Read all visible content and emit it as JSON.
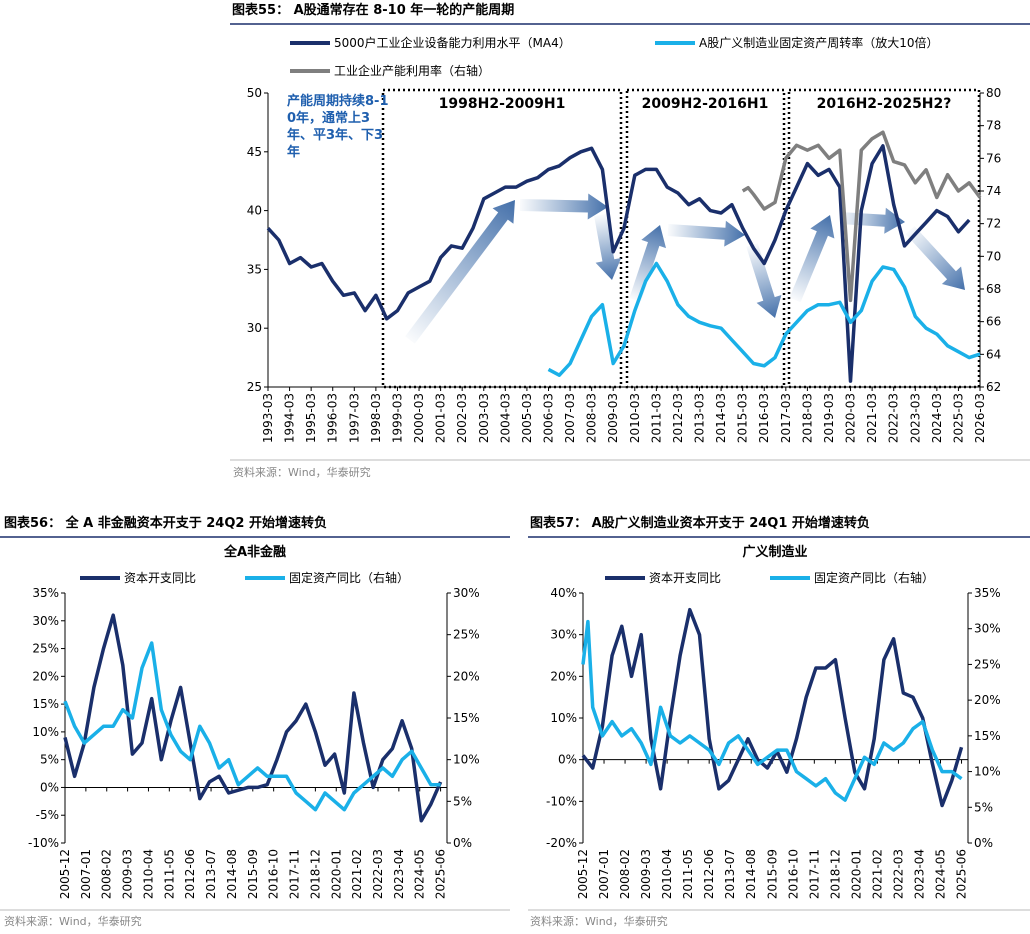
{
  "chart_data": [
    {
      "type": "line",
      "title": "图表55： A股通常存在 8-10 年一轮的产能周期",
      "source": "资料来源：Wind，华泰研究",
      "annotations": [
        "产能周期持续8-10年，通常上3年、平3年、下3年",
        "1998H2-2009H1",
        "2009H2-2016H1",
        "2016H2-2025H2?"
      ],
      "xlim": [
        "1993-03",
        "2026-03"
      ],
      "xticks": [
        "1993-03",
        "1994-03",
        "1995-03",
        "1996-03",
        "1997-03",
        "1998-03",
        "1999-03",
        "2000-03",
        "2001-03",
        "2002-03",
        "2003-03",
        "2004-03",
        "2005-03",
        "2006-03",
        "2007-03",
        "2008-03",
        "2009-03",
        "2010-03",
        "2011-03",
        "2012-03",
        "2013-03",
        "2014-03",
        "2015-03",
        "2016-03",
        "2017-03",
        "2018-03",
        "2019-03",
        "2020-03",
        "2021-03",
        "2022-03",
        "2023-03",
        "2024-03",
        "2025-03",
        "2026-03"
      ],
      "ylim": [
        25,
        50
      ],
      "yticks": [
        25,
        30,
        35,
        40,
        45,
        50
      ],
      "y2lim": [
        62,
        80
      ],
      "y2ticks": [
        62,
        64,
        66,
        68,
        70,
        72,
        74,
        76,
        78,
        80
      ],
      "series": [
        {
          "name": "5000户工业企业设备能力利用水平（MA4）",
          "color": "#1a2f6b",
          "x": [
            "1993-03",
            "1993-09",
            "1994-03",
            "1994-09",
            "1995-03",
            "1995-09",
            "1996-03",
            "1996-09",
            "1997-03",
            "1997-09",
            "1998-03",
            "1998-09",
            "1999-03",
            "1999-09",
            "2000-03",
            "2000-09",
            "2001-03",
            "2001-09",
            "2002-03",
            "2002-09",
            "2003-03",
            "2003-09",
            "2004-03",
            "2004-09",
            "2005-03",
            "2005-09",
            "2006-03",
            "2006-09",
            "2007-03",
            "2007-09",
            "2008-03",
            "2008-09",
            "2009-03",
            "2009-09",
            "2010-03",
            "2010-09",
            "2011-03",
            "2011-09",
            "2012-03",
            "2012-09",
            "2013-03",
            "2013-09",
            "2014-03",
            "2014-09",
            "2015-03",
            "2015-09",
            "2016-03",
            "2016-09",
            "2017-03",
            "2017-09",
            "2018-03",
            "2018-09",
            "2019-03",
            "2019-09",
            "2020-03",
            "2020-09",
            "2021-03",
            "2021-09",
            "2022-03",
            "2022-09",
            "2023-03",
            "2023-09",
            "2024-03",
            "2024-09",
            "2025-03",
            "2025-09"
          ],
          "values": [
            38.5,
            37.5,
            35.5,
            36,
            35.2,
            35.5,
            34,
            32.8,
            33,
            31.5,
            32.8,
            30.8,
            31.5,
            33,
            33.5,
            34,
            36,
            37,
            36.8,
            38.5,
            41,
            41.5,
            42,
            42,
            42.5,
            42.8,
            43.5,
            43.8,
            44.5,
            45,
            45.3,
            43.5,
            36.5,
            38.5,
            43,
            43.5,
            43.5,
            42,
            41.5,
            40.5,
            41,
            40,
            39.8,
            40.5,
            38.5,
            36.8,
            35.5,
            37.5,
            40,
            42,
            44,
            43,
            43.5,
            42,
            25.5,
            40,
            44,
            45.5,
            40.5,
            37,
            38,
            39,
            40,
            39.5,
            38.2,
            39.2
          ]
        },
        {
          "name": "A股广义制造业固定资产周转率（放大10倍）",
          "color": "#1ab0e8",
          "x": [
            "2006-03",
            "2006-09",
            "2007-03",
            "2007-09",
            "2008-03",
            "2008-09",
            "2009-03",
            "2009-09",
            "2010-03",
            "2010-09",
            "2011-03",
            "2011-09",
            "2012-03",
            "2012-09",
            "2013-03",
            "2013-09",
            "2014-03",
            "2014-09",
            "2015-03",
            "2015-09",
            "2016-03",
            "2016-09",
            "2017-03",
            "2017-09",
            "2018-03",
            "2018-09",
            "2019-03",
            "2019-09",
            "2020-03",
            "2020-09",
            "2021-03",
            "2021-09",
            "2022-03",
            "2022-09",
            "2023-03",
            "2023-09",
            "2024-03",
            "2024-09",
            "2025-03",
            "2025-09",
            "2026-03"
          ],
          "values": [
            26.5,
            26,
            27,
            29,
            31,
            32,
            27,
            28.5,
            31.5,
            34,
            35.5,
            34,
            32,
            31,
            30.5,
            30.2,
            30,
            29,
            28,
            27,
            26.8,
            27.5,
            29.5,
            30.5,
            31.5,
            32,
            32,
            32.2,
            30.5,
            31.5,
            34,
            35.2,
            35,
            33.5,
            31,
            30,
            29.5,
            28.5,
            28,
            27.5,
            27.8
          ]
        },
        {
          "name": "工业企业产能利用率（右轴）",
          "color": "#7f7f7f",
          "axis": "y2",
          "x": [
            "2015-03",
            "2015-06",
            "2015-09",
            "2016-03",
            "2016-09",
            "2017-03",
            "2017-09",
            "2018-03",
            "2018-09",
            "2019-03",
            "2019-09",
            "2020-03",
            "2020-09",
            "2021-03",
            "2021-09",
            "2022-03",
            "2022-09",
            "2023-03",
            "2023-09",
            "2024-03",
            "2024-09",
            "2025-03",
            "2025-09",
            "2026-03"
          ],
          "values": [
            74,
            74.2,
            73.8,
            72.9,
            73.3,
            76,
            76.8,
            76.5,
            76.8,
            76,
            76.5,
            67.3,
            76.5,
            77.2,
            77.6,
            75.8,
            75.6,
            74.5,
            75.3,
            73.6,
            75,
            74,
            74.5,
            73.6
          ]
        }
      ]
    },
    {
      "type": "line",
      "title": "图表56： 全 A 非金融资本开支于 24Q2 开始增速转负",
      "subtitle": "全A非金融",
      "source": "资料来源：Wind，华泰研究",
      "xlim": [
        "2005-12",
        "2025-10"
      ],
      "xticks": [
        "2005-12",
        "2007-01",
        "2008-02",
        "2009-03",
        "2010-04",
        "2011-05",
        "2012-06",
        "2013-07",
        "2014-08",
        "2015-09",
        "2016-10",
        "2017-11",
        "2018-12",
        "2020-01",
        "2021-02",
        "2022-03",
        "2023-04",
        "2024-05",
        "2025-06"
      ],
      "ylim": [
        -10,
        35
      ],
      "yticks": [
        {
          "value": -10,
          "label": "-10%"
        },
        {
          "value": -5,
          "label": "-5%"
        },
        {
          "value": 0,
          "label": "0%"
        },
        {
          "value": 5,
          "label": "5%"
        },
        {
          "value": 10,
          "label": "10%"
        },
        {
          "value": 15,
          "label": "15%"
        },
        {
          "value": 20,
          "label": "20%"
        },
        {
          "value": 25,
          "label": "25%"
        },
        {
          "value": 30,
          "label": "30%"
        },
        {
          "value": 35,
          "label": "35%"
        }
      ],
      "y2lim": [
        0,
        30
      ],
      "y2ticks": [
        {
          "value": 0,
          "label": "0%"
        },
        {
          "value": 5,
          "label": "5%"
        },
        {
          "value": 10,
          "label": "10%"
        },
        {
          "value": 15,
          "label": "15%"
        },
        {
          "value": 20,
          "label": "20%"
        },
        {
          "value": 25,
          "label": "25%"
        },
        {
          "value": 30,
          "label": "30%"
        }
      ],
      "series": [
        {
          "name": "资本开支同比",
          "color": "#1a2f6b",
          "x": [
            "2005-12",
            "2006-06",
            "2006-12",
            "2007-06",
            "2007-12",
            "2008-06",
            "2008-12",
            "2009-06",
            "2009-12",
            "2010-06",
            "2010-12",
            "2011-06",
            "2011-12",
            "2012-06",
            "2012-12",
            "2013-06",
            "2013-12",
            "2014-06",
            "2014-12",
            "2015-06",
            "2015-12",
            "2016-06",
            "2016-12",
            "2017-06",
            "2017-12",
            "2018-06",
            "2018-12",
            "2019-06",
            "2019-12",
            "2020-06",
            "2020-12",
            "2021-06",
            "2021-12",
            "2022-06",
            "2022-12",
            "2023-06",
            "2023-12",
            "2024-06",
            "2024-12",
            "2025-06"
          ],
          "values": [
            9,
            2,
            8,
            18,
            25,
            31,
            22,
            6,
            8,
            16,
            5,
            12,
            18,
            8,
            -2,
            1,
            2,
            -1,
            -0.5,
            0,
            0,
            0.5,
            5,
            10,
            12,
            15,
            10,
            4,
            6,
            -1,
            17,
            8,
            0,
            5,
            7,
            12,
            7,
            -6,
            -3,
            1
          ]
        },
        {
          "name": "固定资产同比（右轴）",
          "color": "#1ab0e8",
          "axis": "y2",
          "x": [
            "2005-12",
            "2006-06",
            "2006-12",
            "2007-06",
            "2007-12",
            "2008-06",
            "2008-12",
            "2009-06",
            "2009-12",
            "2010-06",
            "2010-12",
            "2011-06",
            "2011-12",
            "2012-06",
            "2012-12",
            "2013-06",
            "2013-12",
            "2014-06",
            "2014-12",
            "2015-06",
            "2015-12",
            "2016-06",
            "2016-12",
            "2017-06",
            "2017-12",
            "2018-06",
            "2018-12",
            "2019-06",
            "2019-12",
            "2020-06",
            "2020-12",
            "2021-06",
            "2021-12",
            "2022-06",
            "2022-12",
            "2023-06",
            "2023-12",
            "2024-06",
            "2024-12",
            "2025-06"
          ],
          "values": [
            17,
            14,
            12,
            13,
            14,
            14,
            16,
            15,
            21,
            24,
            16,
            13,
            11,
            10,
            14,
            12,
            9,
            10,
            7,
            8,
            9,
            8,
            8,
            8,
            6,
            5,
            4,
            6,
            5,
            4,
            6,
            7,
            8,
            9,
            8,
            10,
            11,
            9,
            7,
            7
          ]
        }
      ]
    },
    {
      "type": "line",
      "title": "图表57： A股广义制造业资本开支于 24Q1 开始增速转负",
      "subtitle": "广义制造业",
      "source": "资料来源：Wind，华泰研究",
      "xlim": [
        "2005-12",
        "2025-10"
      ],
      "xticks": [
        "2005-12",
        "2007-01",
        "2008-02",
        "2009-03",
        "2010-04",
        "2011-05",
        "2012-06",
        "2013-07",
        "2014-08",
        "2015-09",
        "2016-10",
        "2017-11",
        "2018-12",
        "2020-01",
        "2021-02",
        "2022-03",
        "2023-04",
        "2024-05",
        "2025-06"
      ],
      "ylim": [
        -20,
        40
      ],
      "yticks": [
        {
          "value": -20,
          "label": "-20%"
        },
        {
          "value": -10,
          "label": "-10%"
        },
        {
          "value": 0,
          "label": "0%"
        },
        {
          "value": 10,
          "label": "10%"
        },
        {
          "value": 20,
          "label": "20%"
        },
        {
          "value": 30,
          "label": "30%"
        },
        {
          "value": 40,
          "label": "40%"
        }
      ],
      "y2lim": [
        0,
        35
      ],
      "y2ticks": [
        {
          "value": 0,
          "label": "0%"
        },
        {
          "value": 5,
          "label": "5%"
        },
        {
          "value": 10,
          "label": "10%"
        },
        {
          "value": 15,
          "label": "15%"
        },
        {
          "value": 20,
          "label": "20%"
        },
        {
          "value": 25,
          "label": "25%"
        },
        {
          "value": 30,
          "label": "30%"
        },
        {
          "value": 35,
          "label": "35%"
        }
      ],
      "series": [
        {
          "name": "资本开支同比",
          "color": "#1a2f6b",
          "x": [
            "2005-12",
            "2006-06",
            "2006-12",
            "2007-06",
            "2007-12",
            "2008-06",
            "2008-12",
            "2009-06",
            "2009-12",
            "2010-06",
            "2010-12",
            "2011-06",
            "2011-12",
            "2012-06",
            "2012-12",
            "2013-06",
            "2013-12",
            "2014-06",
            "2014-12",
            "2015-06",
            "2015-12",
            "2016-06",
            "2016-12",
            "2017-06",
            "2017-12",
            "2018-06",
            "2018-12",
            "2019-06",
            "2019-12",
            "2020-06",
            "2020-12",
            "2021-06",
            "2021-12",
            "2022-06",
            "2022-12",
            "2023-06",
            "2023-12",
            "2024-06",
            "2024-12",
            "2025-06"
          ],
          "values": [
            1,
            -2,
            8,
            25,
            32,
            20,
            30,
            5,
            -7,
            10,
            25,
            36,
            30,
            5,
            -7,
            -5,
            0,
            5,
            0,
            -2,
            2,
            -3,
            5,
            15,
            22,
            22,
            24,
            10,
            -3,
            -7,
            5,
            24,
            29,
            16,
            15,
            10,
            -1,
            -11,
            -5,
            3
          ]
        },
        {
          "name": "固定资产同比（右轴）",
          "color": "#1ab0e8",
          "axis": "y2",
          "x": [
            "2005-12",
            "2006-03",
            "2006-06",
            "2006-12",
            "2007-06",
            "2007-12",
            "2008-06",
            "2008-12",
            "2009-06",
            "2009-12",
            "2010-06",
            "2010-12",
            "2011-06",
            "2011-12",
            "2012-06",
            "2012-12",
            "2013-06",
            "2013-12",
            "2014-06",
            "2014-12",
            "2015-06",
            "2015-12",
            "2016-06",
            "2016-12",
            "2017-06",
            "2017-12",
            "2018-06",
            "2018-12",
            "2019-06",
            "2019-12",
            "2020-06",
            "2020-12",
            "2021-06",
            "2021-12",
            "2022-06",
            "2022-12",
            "2023-06",
            "2023-12",
            "2024-06",
            "2024-12",
            "2025-06"
          ],
          "values": [
            25,
            31,
            19,
            15,
            17,
            15,
            16,
            14,
            11,
            19,
            15,
            14,
            15,
            14,
            13,
            11,
            14,
            15,
            13,
            11,
            12,
            13,
            13,
            10,
            9,
            8,
            9,
            7,
            6,
            9,
            12,
            11,
            14,
            13,
            14,
            16,
            17,
            13,
            10,
            10,
            9
          ]
        }
      ]
    }
  ]
}
